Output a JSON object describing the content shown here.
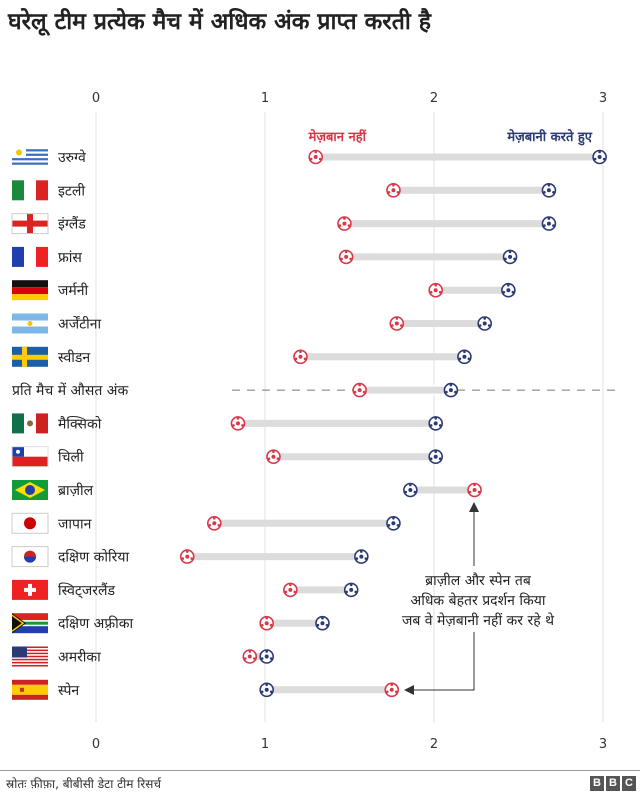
{
  "title": "घरेलू टीम प्रत्येक मैच में अधिक अंक प्राप्त करती है",
  "source": "स्रोतः फ़ीफ़ा, बीबीसी डेटा टीम रिसर्च",
  "logo": "BBC",
  "chart_data": {
    "type": "dumbbell",
    "xlim": [
      0,
      3
    ],
    "ticks": [
      "0",
      "1",
      "2",
      "3"
    ],
    "grid": true,
    "series_labels": {
      "away": "मेज़बान नहीं",
      "home": "मेज़बानी करते हुए"
    },
    "colors": {
      "away": "#d8384a",
      "home": "#2b3a75",
      "bar": "#dcdcdc"
    },
    "rows": [
      {
        "label": "उरुग्वे",
        "flag": "uruguay",
        "away": 1.3,
        "home": 2.98
      },
      {
        "label": "इटली",
        "flag": "italy",
        "away": 1.76,
        "home": 2.68
      },
      {
        "label": "इंग्लैंड",
        "flag": "england",
        "away": 1.47,
        "home": 2.68
      },
      {
        "label": "फ्रांस",
        "flag": "france",
        "away": 1.48,
        "home": 2.45
      },
      {
        "label": "जर्मनी",
        "flag": "germany",
        "away": 2.01,
        "home": 2.44
      },
      {
        "label": "अर्जेंटीना",
        "flag": "argentina",
        "away": 1.78,
        "home": 2.3
      },
      {
        "label": "स्वीडन",
        "flag": "sweden",
        "away": 1.21,
        "home": 2.18
      },
      {
        "label": "प्रति मैच में औसत अंक",
        "flag": "",
        "average": true,
        "away": 1.56,
        "home": 2.1
      },
      {
        "label": "मैक्सिको",
        "flag": "mexico",
        "away": 0.84,
        "home": 2.01
      },
      {
        "label": "चिली",
        "flag": "chile",
        "away": 1.05,
        "home": 2.01
      },
      {
        "label": "ब्राज़ील",
        "flag": "brazil",
        "away": 2.24,
        "home": 1.86
      },
      {
        "label": "जापान",
        "flag": "japan",
        "away": 0.7,
        "home": 1.76
      },
      {
        "label": "दक्षिण कोरिया",
        "flag": "korea",
        "away": 0.54,
        "home": 1.57
      },
      {
        "label": "स्विट्जरलैंड",
        "flag": "switzerland",
        "away": 1.15,
        "home": 1.51
      },
      {
        "label": "दक्षिण अफ़्रीका",
        "flag": "southafrica",
        "away": 1.01,
        "home": 1.34
      },
      {
        "label": "अमरीका",
        "flag": "usa",
        "away": 0.91,
        "home": 1.01
      },
      {
        "label": "स्पेन",
        "flag": "spain",
        "away": 1.75,
        "home": 1.01
      }
    ],
    "annotation": [
      "ब्राज़ील और स्पेन तब",
      "अधिक बेहतर प्रदर्शन किया",
      "जब वे मेज़बानी नहीं कर रहे थे"
    ]
  }
}
